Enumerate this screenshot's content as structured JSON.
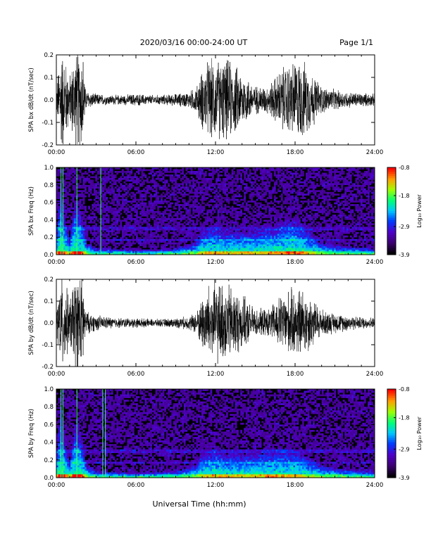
{
  "header": {
    "title": "2020/03/16  00:00-24:00 UT",
    "page": "Page 1/1"
  },
  "footer": {
    "xlabel": "Universal Time (hh:mm)"
  },
  "colorbar_label": "Log₁₀ Power",
  "chart_data": [
    {
      "type": "line",
      "ylabel": "SPA bx dB/dt (nT/sec)",
      "xlim": [
        0,
        24
      ],
      "ylim": [
        -0.2,
        0.2
      ],
      "x_ticks": [
        "00:00",
        "06:00",
        "12:00",
        "18:00",
        "24:00"
      ],
      "y_ticks": [
        "0.2",
        "0.1",
        "0.0",
        "-0.1",
        "-0.2"
      ],
      "envelope": {
        "hours": [
          0,
          0.3,
          0.5,
          1.0,
          1.4,
          2.0,
          2.2,
          3,
          4,
          5,
          6,
          7,
          8,
          9,
          10,
          10.6,
          11,
          11.5,
          12,
          12.5,
          13,
          14,
          15,
          16,
          17,
          18,
          18.5,
          19,
          20,
          21,
          22,
          23,
          24
        ],
        "amplitude": [
          0.05,
          0.25,
          0.25,
          0.12,
          0.25,
          0.25,
          0.05,
          0.03,
          0.025,
          0.025,
          0.03,
          0.025,
          0.025,
          0.03,
          0.04,
          0.07,
          0.15,
          0.2,
          0.2,
          0.2,
          0.2,
          0.14,
          0.07,
          0.07,
          0.16,
          0.2,
          0.2,
          0.16,
          0.07,
          0.05,
          0.04,
          0.035,
          0.03
        ]
      }
    },
    {
      "type": "heatmap",
      "ylabel": "SPA bx Freq (Hz)",
      "xlim": [
        0,
        24
      ],
      "ylim": [
        0,
        1.0
      ],
      "x_ticks": [
        "00:00",
        "06:00",
        "12:00",
        "18:00",
        "24:00"
      ],
      "y_ticks": [
        "1.0",
        "0.8",
        "0.6",
        "0.4",
        "0.2",
        "0.0"
      ],
      "colorbar": {
        "range": [
          -3.9,
          -0.8
        ],
        "ticks": [
          "-0.8",
          "-1.8",
          "-2.9",
          "-3.9"
        ]
      },
      "spike_hours": [
        0.35,
        0.5,
        1.55,
        3.35
      ],
      "activity": {
        "hours": [
          0,
          0.3,
          0.6,
          1.0,
          1.5,
          2.0,
          2.3,
          3,
          6,
          9,
          10.5,
          11,
          12,
          13,
          14,
          15,
          16,
          17,
          18,
          19,
          20,
          22,
          24
        ],
        "height": [
          0.2,
          0.9,
          0.5,
          0.2,
          0.7,
          0.4,
          0.15,
          0.08,
          0.06,
          0.08,
          0.15,
          0.3,
          0.35,
          0.3,
          0.3,
          0.3,
          0.35,
          0.4,
          0.45,
          0.3,
          0.15,
          0.1,
          0.08
        ]
      }
    },
    {
      "type": "line",
      "ylabel": "SPA by dB/dt (nT/sec)",
      "xlim": [
        0,
        24
      ],
      "ylim": [
        -0.2,
        0.2
      ],
      "x_ticks": [
        "00:00",
        "06:00",
        "12:00",
        "18:00",
        "24:00"
      ],
      "y_ticks": [
        "0.2",
        "0.1",
        "0.0",
        "-0.1",
        "-0.2"
      ],
      "envelope": {
        "hours": [
          0,
          0.3,
          0.5,
          1.0,
          1.4,
          2.0,
          2.2,
          3,
          4,
          5,
          6,
          7,
          8,
          9,
          10,
          10.6,
          11,
          11.5,
          12,
          12.5,
          13,
          14,
          15,
          16,
          17,
          18,
          18.5,
          19,
          20,
          21,
          22,
          23,
          24
        ],
        "amplitude": [
          0.05,
          0.25,
          0.25,
          0.12,
          0.25,
          0.25,
          0.06,
          0.04,
          0.03,
          0.025,
          0.025,
          0.02,
          0.02,
          0.025,
          0.035,
          0.06,
          0.14,
          0.2,
          0.22,
          0.2,
          0.2,
          0.14,
          0.07,
          0.07,
          0.15,
          0.18,
          0.18,
          0.15,
          0.07,
          0.05,
          0.04,
          0.03,
          0.03
        ]
      }
    },
    {
      "type": "heatmap",
      "ylabel": "SPA by Freq (Hz)",
      "xlim": [
        0,
        24
      ],
      "ylim": [
        0,
        1.0
      ],
      "x_ticks": [
        "00:00",
        "06:00",
        "12:00",
        "18:00",
        "24:00"
      ],
      "y_ticks": [
        "1.0",
        "0.8",
        "0.6",
        "0.4",
        "0.2",
        "0.0"
      ],
      "colorbar": {
        "range": [
          -3.9,
          -0.8
        ],
        "ticks": [
          "-0.8",
          "-1.8",
          "-2.9",
          "-3.9"
        ]
      },
      "spike_hours": [
        0.35,
        0.5,
        1.55,
        3.5,
        3.7
      ],
      "activity": {
        "hours": [
          0,
          0.3,
          0.6,
          1.0,
          1.5,
          2.0,
          2.3,
          3,
          6,
          9,
          10.5,
          11,
          12,
          13,
          14,
          15,
          16,
          17,
          18,
          19,
          20,
          22,
          24
        ],
        "height": [
          0.2,
          0.9,
          0.5,
          0.2,
          0.7,
          0.4,
          0.15,
          0.08,
          0.06,
          0.08,
          0.15,
          0.3,
          0.35,
          0.3,
          0.3,
          0.3,
          0.35,
          0.35,
          0.35,
          0.25,
          0.15,
          0.1,
          0.08
        ]
      }
    }
  ]
}
